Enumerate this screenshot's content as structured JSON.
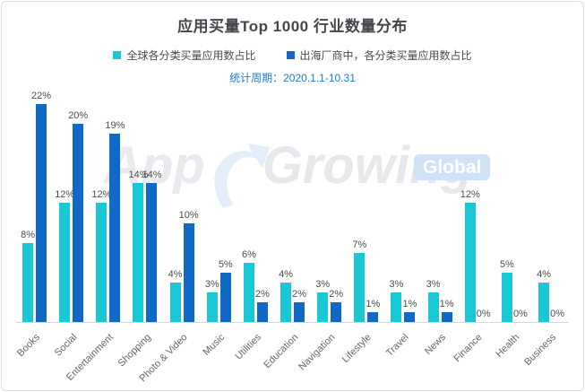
{
  "title": "应用买量Top 1000 行业数量分布",
  "subtitle": "统计周期：2020.1.1-10.31",
  "colors": {
    "series_global": "#1AC8D5",
    "series_overseas": "#1169C7",
    "subtitle_text": "#1c7cd5",
    "title_text": "#45454d"
  },
  "legend": [
    {
      "label": "全球各分类买量应用数占比",
      "color": "#1AC8D5"
    },
    {
      "label": "出海厂商中，各分类买量应用数占比",
      "color": "#1169C7"
    }
  ],
  "watermark": {
    "text_app": "App",
    "text_growing": "Growing",
    "badge": "Global",
    "arrow_icon": "up-right-swoosh-arrow"
  },
  "chart_data": {
    "type": "bar",
    "title": "应用买量Top 1000 行业数量分布",
    "subtitle": "统计周期：2020.1.1-10.31",
    "categories": [
      "Books",
      "Social",
      "Entertainment",
      "Shopping",
      "Photo & Video",
      "Music",
      "Utilities",
      "Education",
      "Navigation",
      "Lifestyle",
      "Travel",
      "News",
      "Finance",
      "Health",
      "Business"
    ],
    "series": [
      {
        "name": "全球各分类买量应用数占比",
        "color": "#1AC8D5",
        "values": [
          8,
          12,
          12,
          14,
          4,
          3,
          6,
          4,
          3,
          7,
          3,
          3,
          12,
          5,
          4
        ]
      },
      {
        "name": "出海厂商中，各分类买量应用数占比",
        "color": "#1169C7",
        "values": [
          22,
          20,
          19,
          14,
          10,
          5,
          2,
          2,
          2,
          1,
          1,
          1,
          0,
          0,
          0
        ]
      }
    ],
    "value_suffix": "%",
    "data_labels": true,
    "xlabel": "",
    "ylabel": "",
    "ylim": [
      0,
      22
    ],
    "grid": false,
    "legend_position": "top",
    "x_label_rotation": 45
  }
}
